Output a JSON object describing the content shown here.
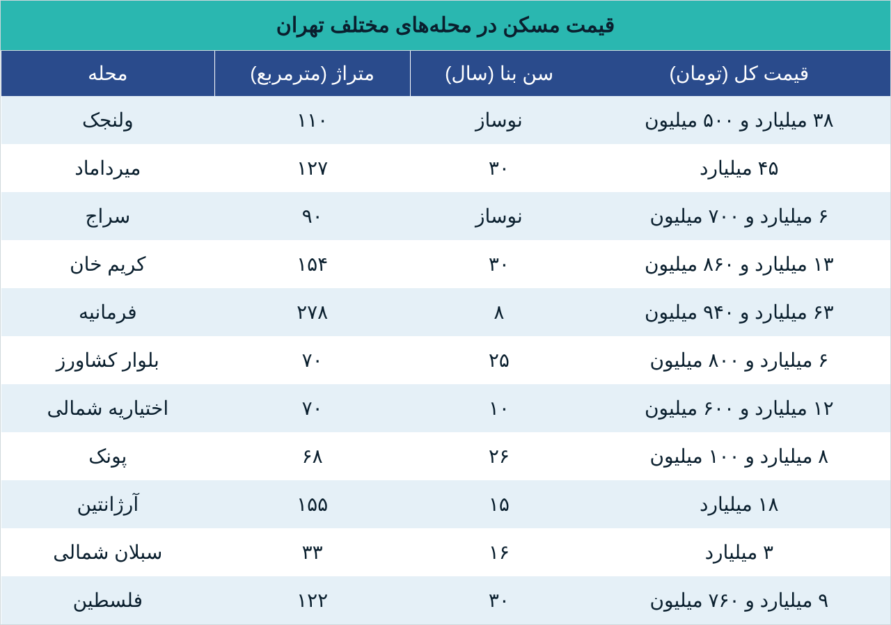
{
  "table": {
    "title": "قیمت مسکن در محله‌های مختلف تهران",
    "title_bg": "#2ab7b0",
    "title_color": "#0a1f2e",
    "header_bg": "#2a4b8c",
    "header_color": "#ffffff",
    "row_odd_bg": "#e5f0f7",
    "row_even_bg": "#ffffff",
    "text_color": "#0a1f2e",
    "title_fontsize": 30,
    "header_fontsize": 28,
    "cell_fontsize": 28,
    "columns": [
      {
        "key": "price",
        "label": "قیمت کل (تومان)",
        "width": "34%"
      },
      {
        "key": "age",
        "label": "سن بنا (سال)",
        "width": "20%"
      },
      {
        "key": "area",
        "label": "متراژ (مترمربع)",
        "width": "22%"
      },
      {
        "key": "neighborhood",
        "label": "محله",
        "width": "24%"
      }
    ],
    "rows": [
      {
        "neighborhood": "ولنجک",
        "area": "۱۱۰",
        "age": "نوساز",
        "price": "۳۸ میلیارد و ۵۰۰ میلیون"
      },
      {
        "neighborhood": "میرداماد",
        "area": "۱۲۷",
        "age": "۳۰",
        "price": "۴۵ میلیارد"
      },
      {
        "neighborhood": "سراج",
        "area": "۹۰",
        "age": "نوساز",
        "price": "۶ میلیارد و ۷۰۰ میلیون"
      },
      {
        "neighborhood": "کریم خان",
        "area": "۱۵۴",
        "age": "۳۰",
        "price": "۱۳ میلیارد و ۸۶۰ میلیون"
      },
      {
        "neighborhood": "فرمانیه",
        "area": "۲۷۸",
        "age": "۸",
        "price": "۶۳ میلیارد و ۹۴۰ میلیون"
      },
      {
        "neighborhood": "بلوار کشاورز",
        "area": "۷۰",
        "age": "۲۵",
        "price": "۶ میلیارد و ۸۰۰ میلیون"
      },
      {
        "neighborhood": "اختیاریه شمالی",
        "area": "۷۰",
        "age": "۱۰",
        "price": "۱۲ میلیارد و ۶۰۰ میلیون"
      },
      {
        "neighborhood": "پونک",
        "area": "۶۸",
        "age": "۲۶",
        "price": "۸ میلیارد و ۱۰۰ میلیون"
      },
      {
        "neighborhood": "آرژانتین",
        "area": "۱۵۵",
        "age": "۱۵",
        "price": "۱۸ میلیارد"
      },
      {
        "neighborhood": "سبلان شمالی",
        "area": "۳۳",
        "age": "۱۶",
        "price": "۳ میلیارد"
      },
      {
        "neighborhood": "فلسطین",
        "area": "۱۲۲",
        "age": "۳۰",
        "price": "۹ میلیارد و ۷۶۰ میلیون"
      }
    ]
  }
}
